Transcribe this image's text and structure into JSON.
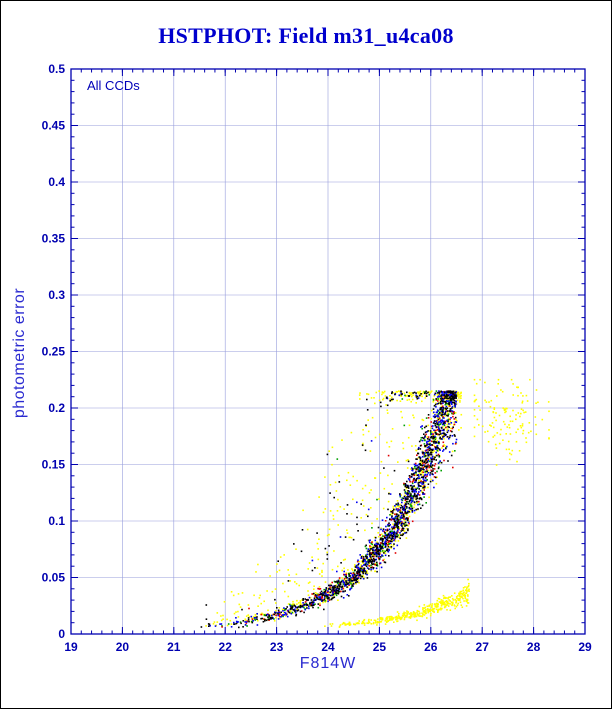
{
  "chart_data": {
    "type": "scatter",
    "title": "HSTPHOT: Field m31_u4ca08",
    "annotation": "All CCDs",
    "xlabel": "F814W",
    "ylabel": "photometric error",
    "xlim": [
      19,
      29
    ],
    "ylim": [
      0,
      0.5
    ],
    "x_ticks": [
      19,
      20,
      21,
      22,
      23,
      24,
      25,
      26,
      27,
      28,
      29
    ],
    "y_ticks": [
      0,
      0.05,
      0.1,
      0.15,
      0.2,
      0.25,
      0.3,
      0.35,
      0.4,
      0.45,
      0.5
    ],
    "y_tick_labels": [
      "0",
      "0.05",
      "0.1",
      "0.15",
      "0.2",
      "0.25",
      "0.3",
      "0.35",
      "0.4",
      "0.45",
      "0.5"
    ],
    "x_minor_step": 0.2,
    "y_minor_step": 0.01,
    "grid": true,
    "legend": "none",
    "colors": {
      "axis": "#0000b0",
      "grid": "#979ddc",
      "title": "#0000cd",
      "labels": "#2a2ad0",
      "tick_text": "#0000b0",
      "background": "#ffffff"
    },
    "saturation_cap": 0.215,
    "error_curve": {
      "x": [
        20.8,
        21,
        22,
        23,
        24,
        24.5,
        25,
        25.5,
        26,
        26.2,
        26.35,
        26.5
      ],
      "y": [
        0.003,
        0.004,
        0.008,
        0.016,
        0.035,
        0.05,
        0.075,
        0.11,
        0.162,
        0.19,
        0.208,
        0.216
      ]
    },
    "secondary_curve": {
      "x": [
        23.8,
        24.5,
        25.2,
        25.8,
        26.3,
        26.75
      ],
      "y": [
        0.006,
        0.009,
        0.013,
        0.019,
        0.027,
        0.036
      ],
      "color": "#ffff00"
    },
    "secondary_n": 420,
    "outlier_cluster": {
      "x_center": 27.5,
      "x_sigma": 0.42,
      "y_center": 0.19,
      "y_sigma": 0.018,
      "x_range": [
        26.85,
        28.3
      ],
      "y_range": [
        0.13,
        0.225
      ],
      "color": "#ffff00",
      "n": 130
    },
    "series": [
      {
        "name": "ccd-yellow",
        "color": "#ffff00",
        "n": 950,
        "wide_frac": 0.5,
        "outlier_frac": 0.0
      },
      {
        "name": "ccd-green",
        "color": "#00a000",
        "n": 300,
        "wide_frac": 0.0,
        "outlier_frac": 0.02
      },
      {
        "name": "ccd-red",
        "color": "#e00000",
        "n": 300,
        "wide_frac": 0.0,
        "outlier_frac": 0.02
      },
      {
        "name": "ccd-blue",
        "color": "#0000f0",
        "n": 650,
        "wide_frac": 0.0,
        "outlier_frac": 0.03
      },
      {
        "name": "ccd-black",
        "color": "#000000",
        "n": 850,
        "wide_frac": 0.02,
        "outlier_frac": 0.1
      }
    ]
  }
}
